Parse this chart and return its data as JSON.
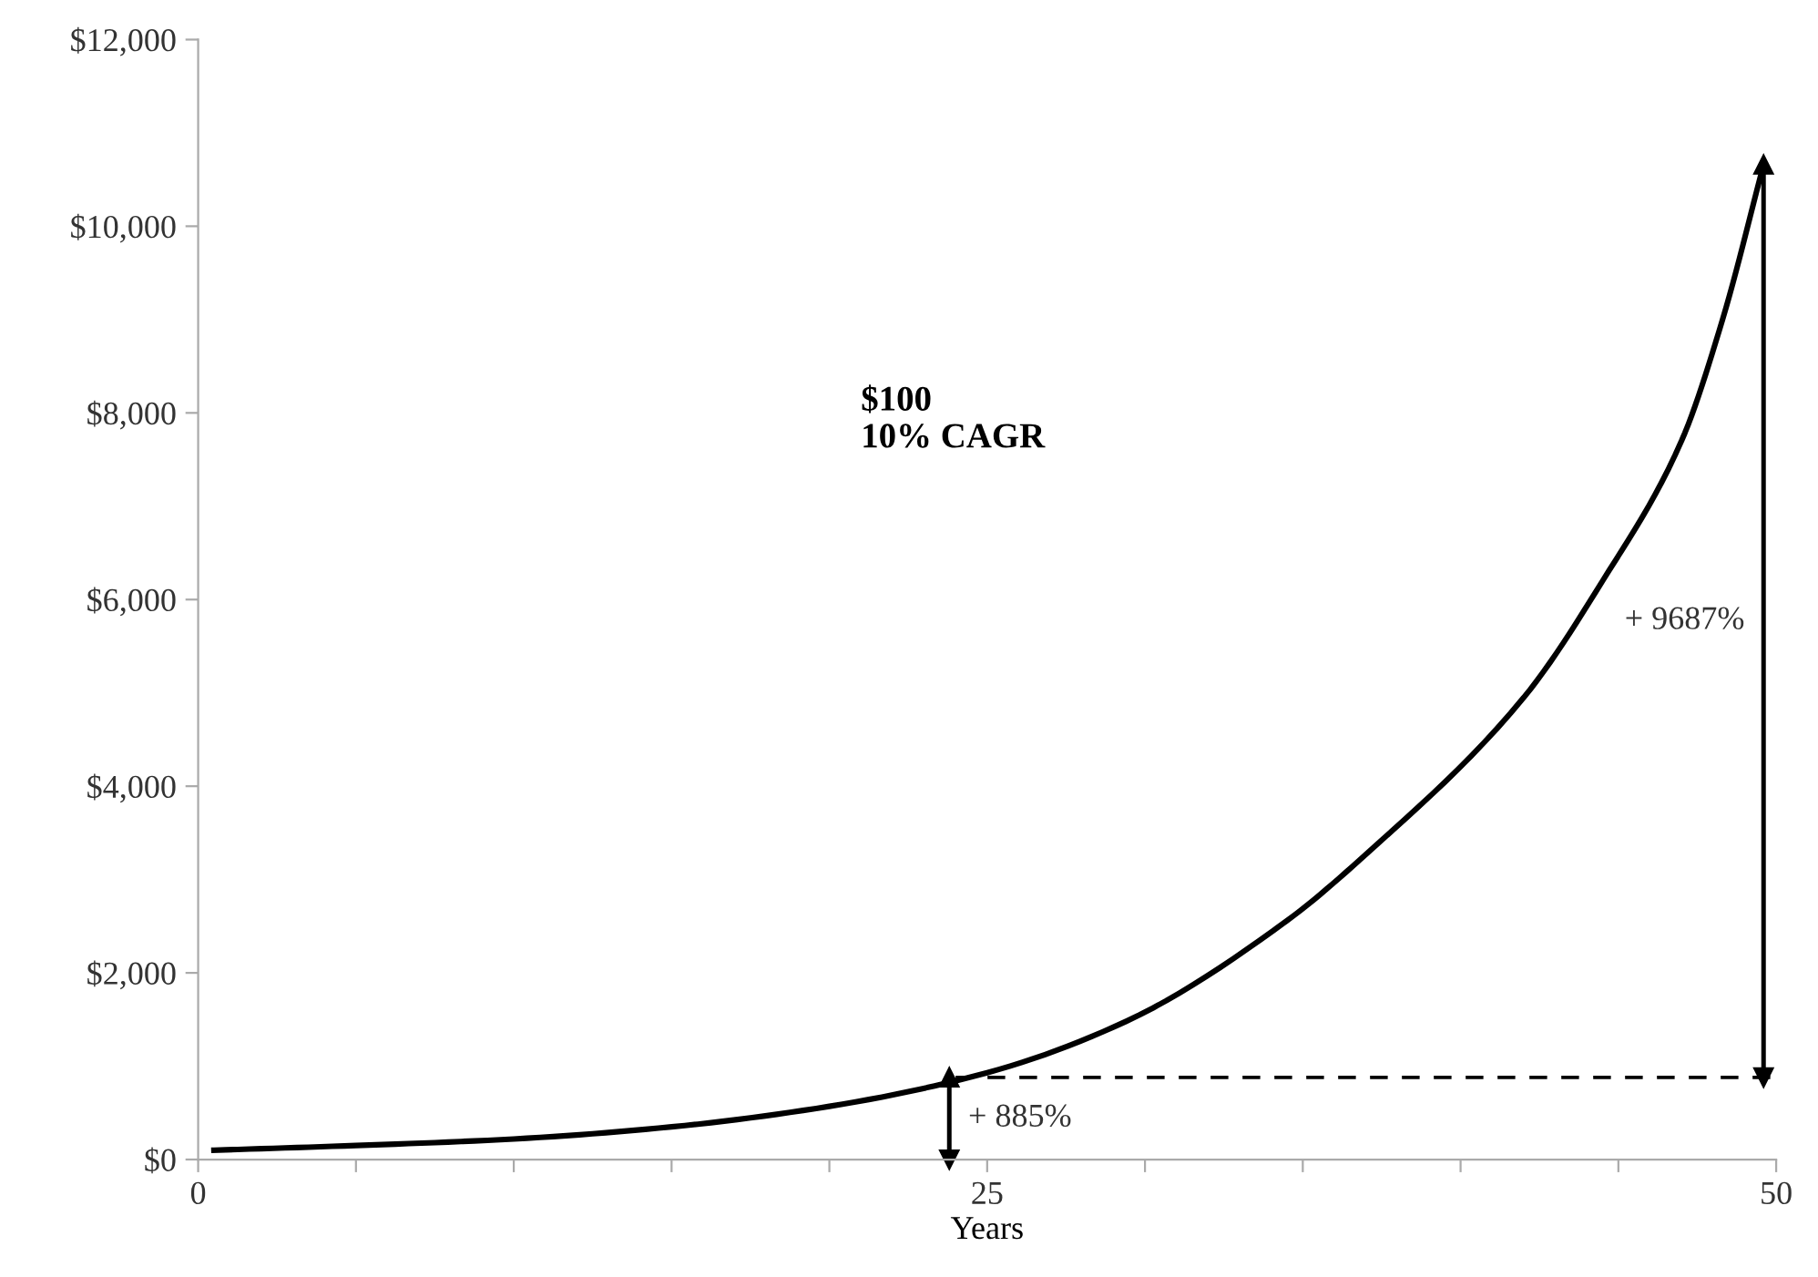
{
  "chart_data": {
    "type": "line",
    "xlabel": "Years",
    "series": [
      {
        "color": "#000000",
        "line_style": "solid",
        "x": [
          0.5,
          5,
          10,
          15,
          20,
          25,
          29.4,
          34.5,
          37,
          42,
          44.5,
          47,
          48.3,
          49.6
        ],
        "values": [
          100,
          150,
          220,
          350,
          570,
          930,
          1480,
          2560,
          3270,
          4950,
          6200,
          7700,
          9000,
          10660
        ]
      },
      {
        "color": "#000000",
        "line_style": "dashed",
        "x": [
          24,
          50
        ],
        "values": [
          880,
          880
        ]
      },
      {
        "color": "#000000",
        "line_style": "solid",
        "marker": "triangle",
        "x": [
          23.8,
          23.8
        ],
        "values": [
          0,
          880
        ]
      },
      {
        "color": "#000000",
        "line_style": "solid",
        "marker": "triangle",
        "x": [
          49.6,
          49.6
        ],
        "values": [
          880,
          10660
        ]
      }
    ],
    "xlim": [
      0,
      50
    ],
    "xticks": [
      0,
      {
        "value": 5,
        "label": null
      },
      {
        "value": 10,
        "label": null
      },
      {
        "value": 15,
        "label": null
      },
      {
        "value": 20,
        "label": null
      },
      25,
      {
        "value": 30,
        "label": null
      },
      {
        "value": 35,
        "label": null
      },
      {
        "value": 40,
        "label": null
      },
      {
        "value": 45,
        "label": null
      },
      50
    ],
    "ylim": [
      0,
      12000
    ],
    "yticks": [
      {
        "value": 0,
        "label": "$0"
      },
      {
        "value": 2000,
        "label": "$2,000"
      },
      {
        "value": 4000,
        "label": "$4,000"
      },
      {
        "value": 6000,
        "label": "$6,000"
      },
      {
        "value": 8000,
        "label": "$8,000"
      },
      {
        "value": 10000,
        "label": "$10,000"
      },
      {
        "value": 12000,
        "label": "$12,000"
      }
    ],
    "grid": false,
    "legend": false,
    "annotations": [
      "$100\n10% CAGR",
      "+ 885%",
      "+ 9687%"
    ]
  }
}
